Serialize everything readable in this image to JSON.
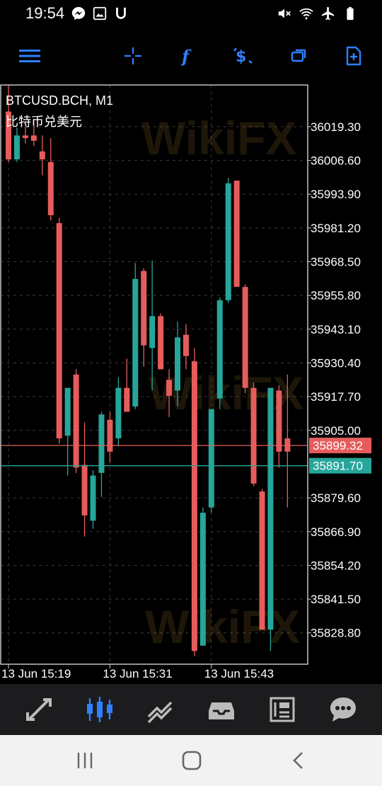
{
  "status_bar": {
    "time": "19:54",
    "left_icons": [
      "messenger-icon",
      "gallery-icon",
      "u-icon"
    ],
    "right_icons": [
      "mute-icon",
      "wifi-icon",
      "airplane-icon",
      "battery-icon"
    ]
  },
  "toolbar": {
    "accent_color": "#2f7fff",
    "buttons": [
      "menu-icon",
      "crosshair-icon",
      "indicator-icon",
      "currency-icon",
      "windows-icon",
      "new-order-icon"
    ]
  },
  "chart": {
    "title": "BTCUSD.BCH, M1",
    "subtitle": "比特币兑美元",
    "watermark": "WikiFX",
    "bid_price": "35899.32",
    "ask_price": "35891.70",
    "bid_color": "#e65c5c",
    "ask_color": "#26a69a"
  },
  "chart_data": {
    "type": "candlestick",
    "ylim": [
      35817.0,
      36035.0
    ],
    "y_ticks": [
      "36019.30",
      "36006.60",
      "35993.90",
      "35981.20",
      "35968.50",
      "35955.80",
      "35943.10",
      "35930.40",
      "35917.70",
      "35905.00",
      "35879.60",
      "35866.90",
      "35854.20",
      "35841.50",
      "35828.80"
    ],
    "x_labels": [
      {
        "label": "13 Jun 15:19",
        "index": 0
      },
      {
        "label": "13 Jun 15:31",
        "index": 12
      },
      {
        "label": "13 Jun 15:43",
        "index": 24
      }
    ],
    "candles": [
      {
        "o": 36025,
        "h": 36035,
        "l": 36006,
        "c": 36007
      },
      {
        "o": 36007,
        "h": 36019,
        "l": 36006,
        "c": 36016
      },
      {
        "o": 36016,
        "h": 36021,
        "l": 36013,
        "c": 36015
      },
      {
        "o": 36016,
        "h": 36022,
        "l": 36012,
        "c": 36014
      },
      {
        "o": 36010,
        "h": 36016,
        "l": 36001,
        "c": 36007
      },
      {
        "o": 36006,
        "h": 36015,
        "l": 35984,
        "c": 35986
      },
      {
        "o": 35983,
        "h": 35985,
        "l": 35900,
        "c": 35902
      },
      {
        "o": 35903,
        "h": 35919,
        "l": 35888,
        "c": 35921
      },
      {
        "o": 35926,
        "h": 35928,
        "l": 35889,
        "c": 35891
      },
      {
        "o": 35892,
        "h": 35908,
        "l": 35865,
        "c": 35873
      },
      {
        "o": 35871,
        "h": 35890,
        "l": 35868,
        "c": 35888
      },
      {
        "o": 35889,
        "h": 35912,
        "l": 35880,
        "c": 35911
      },
      {
        "o": 35909,
        "h": 35912,
        "l": 35893,
        "c": 35897
      },
      {
        "o": 35902,
        "h": 35925,
        "l": 35899,
        "c": 35921
      },
      {
        "o": 35921,
        "h": 35932,
        "l": 35912,
        "c": 35912
      },
      {
        "o": 35914,
        "h": 35968,
        "l": 35913,
        "c": 35962
      },
      {
        "o": 35965,
        "h": 35966,
        "l": 35929,
        "c": 35937
      },
      {
        "o": 35936,
        "h": 35969,
        "l": 35920,
        "c": 35948
      },
      {
        "o": 35948,
        "h": 35949,
        "l": 35928,
        "c": 35928
      },
      {
        "o": 35924,
        "h": 35928,
        "l": 35910,
        "c": 35918
      },
      {
        "o": 35920,
        "h": 35946,
        "l": 35914,
        "c": 35940
      },
      {
        "o": 35941,
        "h": 35945,
        "l": 35928,
        "c": 35933
      },
      {
        "o": 35931,
        "h": 35936,
        "l": 35820,
        "c": 35822
      },
      {
        "o": 35824,
        "h": 35876,
        "l": 35824,
        "c": 35874
      },
      {
        "o": 35876,
        "h": 35913,
        "l": 35874,
        "c": 35913
      },
      {
        "o": 35917,
        "h": 35955,
        "l": 35913,
        "c": 35954
      },
      {
        "o": 35954,
        "h": 36000,
        "l": 35953,
        "c": 35998
      },
      {
        "o": 35999,
        "h": 35999,
        "l": 35959,
        "c": 35959
      },
      {
        "o": 35959,
        "h": 35960,
        "l": 35919,
        "c": 35921
      },
      {
        "o": 35921,
        "h": 35923,
        "l": 35884,
        "c": 35885
      },
      {
        "o": 35882,
        "h": 35883,
        "l": 35830,
        "c": 35830
      },
      {
        "o": 35830,
        "h": 35921,
        "l": 35822,
        "c": 35921
      },
      {
        "o": 35920,
        "h": 35922,
        "l": 35891,
        "c": 35897
      },
      {
        "o": 35902,
        "h": 35926,
        "l": 35876,
        "c": 35897
      }
    ]
  },
  "bottom_nav": {
    "items": [
      "quotes-icon",
      "chart-icon",
      "trade-icon",
      "history-icon",
      "news-icon",
      "messages-icon"
    ],
    "active": "chart-icon",
    "active_color": "#2f7fff"
  },
  "system_nav": [
    "recent-apps-icon",
    "home-icon",
    "back-icon"
  ]
}
